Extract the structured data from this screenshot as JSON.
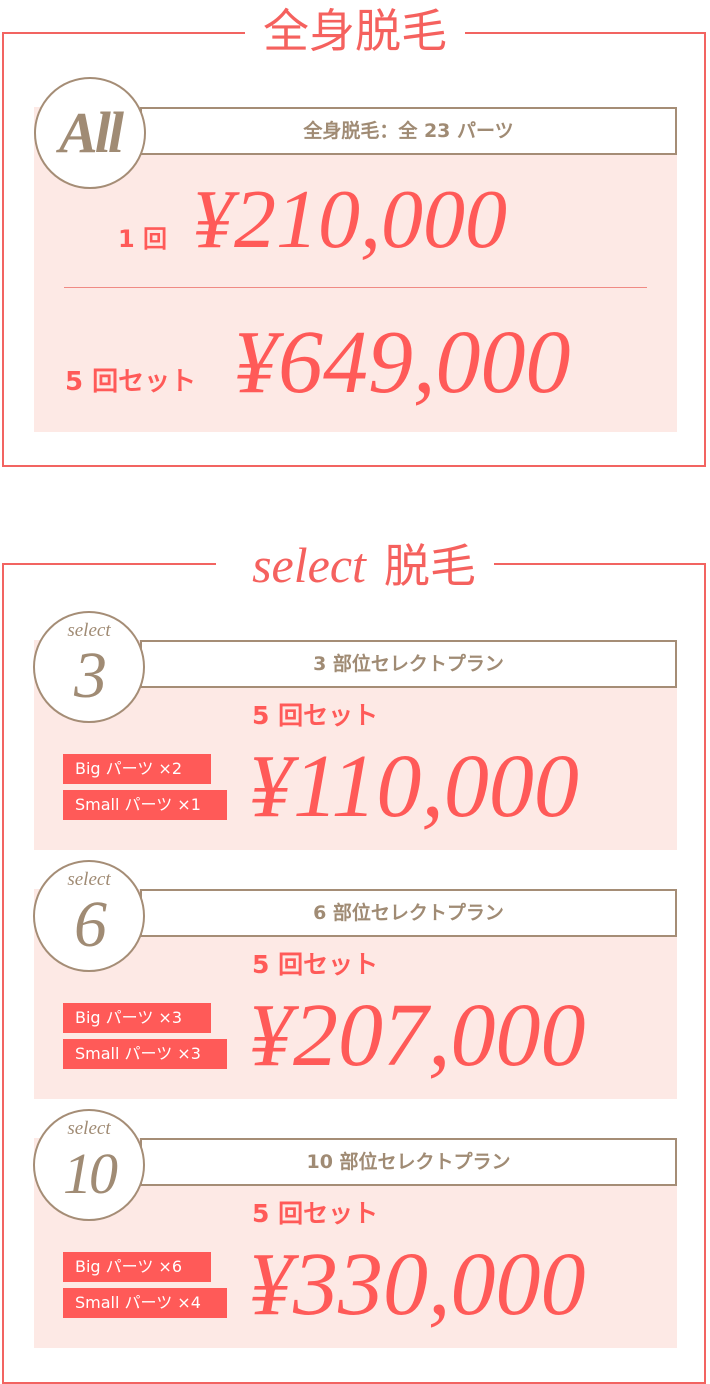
{
  "full_body": {
    "title": "全身脱毛",
    "badge": "All",
    "header": "全身脱毛：全 23 パーツ",
    "single_label": "1 回",
    "single_price": "¥210,000",
    "set_label": "5 回セット",
    "set_price": "¥649,000"
  },
  "select": {
    "title_script": "select",
    "title_kanji": "脱毛",
    "plans": [
      {
        "badge_small": "select",
        "badge_num": "3",
        "header": "3 部位セレクトプラン",
        "set_label": "5 回セット",
        "price": "¥110,000",
        "big": "Big パーツ ×2",
        "small": "Small パーツ ×1"
      },
      {
        "badge_small": "select",
        "badge_num": "6",
        "header": "6 部位セレクトプラン",
        "set_label": "5 回セット",
        "price": "¥207,000",
        "big": "Big パーツ ×3",
        "small": "Small パーツ ×3"
      },
      {
        "badge_small": "select",
        "badge_num": "10",
        "header": "10 部位セレクトプラン",
        "set_label": "5 回セット",
        "price": "¥330,000",
        "big": "Big パーツ ×6",
        "small": "Small パーツ ×4"
      }
    ]
  },
  "colors": {
    "accent": "#ff5a58",
    "brown": "#a08b74",
    "pink_bg": "#fde9e5"
  }
}
